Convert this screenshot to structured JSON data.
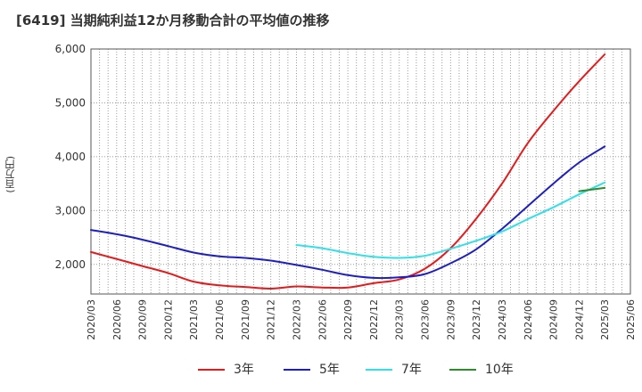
{
  "chart_data": {
    "type": "line",
    "title": "[6419]  当期純利益12か月移動合計の平均値の推移",
    "ylabel": "(百万円)",
    "ylim": [
      1450,
      6000
    ],
    "yticks": [
      2000,
      3000,
      4000,
      5000,
      6000
    ],
    "ytick_labels": [
      "2,000",
      "3,000",
      "4,000",
      "5,000",
      "6,000"
    ],
    "xlim": [
      "2020/03",
      "2025/06"
    ],
    "x_tick_labels": [
      "2020/03",
      "2020/06",
      "2020/09",
      "2020/12",
      "2021/03",
      "2021/06",
      "2021/09",
      "2021/12",
      "2022/03",
      "2022/06",
      "2022/09",
      "2022/12",
      "2023/03",
      "2023/06",
      "2023/09",
      "2023/12",
      "2024/03",
      "2024/06",
      "2024/09",
      "2024/12",
      "2025/03",
      "2025/06"
    ],
    "grid": true,
    "legend_position": "bottom",
    "series": [
      {
        "name": "3年",
        "color": "#e41a1c",
        "points": [
          [
            "2020/03",
            2230
          ],
          [
            "2020/06",
            2100
          ],
          [
            "2020/09",
            1970
          ],
          [
            "2020/12",
            1840
          ],
          [
            "2021/03",
            1680
          ],
          [
            "2021/06",
            1610
          ],
          [
            "2021/09",
            1580
          ],
          [
            "2021/12",
            1550
          ],
          [
            "2022/03",
            1590
          ],
          [
            "2022/06",
            1570
          ],
          [
            "2022/09",
            1570
          ],
          [
            "2022/12",
            1650
          ],
          [
            "2023/03",
            1720
          ],
          [
            "2023/06",
            1920
          ],
          [
            "2023/09",
            2300
          ],
          [
            "2023/12",
            2850
          ],
          [
            "2024/03",
            3500
          ],
          [
            "2024/06",
            4250
          ],
          [
            "2024/09",
            4850
          ],
          [
            "2024/12",
            5400
          ],
          [
            "2025/03",
            5900
          ]
        ]
      },
      {
        "name": "5年",
        "color": "#1f1fbf",
        "points": [
          [
            "2020/03",
            2640
          ],
          [
            "2020/06",
            2560
          ],
          [
            "2020/09",
            2460
          ],
          [
            "2020/12",
            2340
          ],
          [
            "2021/03",
            2220
          ],
          [
            "2021/06",
            2150
          ],
          [
            "2021/09",
            2120
          ],
          [
            "2021/12",
            2070
          ],
          [
            "2022/03",
            1990
          ],
          [
            "2022/06",
            1900
          ],
          [
            "2022/09",
            1800
          ],
          [
            "2022/12",
            1750
          ],
          [
            "2023/03",
            1760
          ],
          [
            "2023/06",
            1820
          ],
          [
            "2023/09",
            2020
          ],
          [
            "2023/12",
            2280
          ],
          [
            "2024/03",
            2660
          ],
          [
            "2024/06",
            3080
          ],
          [
            "2024/09",
            3500
          ],
          [
            "2024/12",
            3890
          ],
          [
            "2025/03",
            4190
          ]
        ]
      },
      {
        "name": "7年",
        "color": "#33e0e8",
        "points": [
          [
            "2022/03",
            2360
          ],
          [
            "2022/06",
            2300
          ],
          [
            "2022/09",
            2210
          ],
          [
            "2022/12",
            2140
          ],
          [
            "2023/03",
            2120
          ],
          [
            "2023/06",
            2160
          ],
          [
            "2023/09",
            2290
          ],
          [
            "2023/12",
            2440
          ],
          [
            "2024/03",
            2610
          ],
          [
            "2024/06",
            2840
          ],
          [
            "2024/09",
            3060
          ],
          [
            "2024/12",
            3300
          ],
          [
            "2025/03",
            3520
          ]
        ]
      },
      {
        "name": "10年",
        "color": "#2e8b2e",
        "points": [
          [
            "2024/12",
            3360
          ],
          [
            "2025/03",
            3420
          ]
        ]
      }
    ]
  }
}
